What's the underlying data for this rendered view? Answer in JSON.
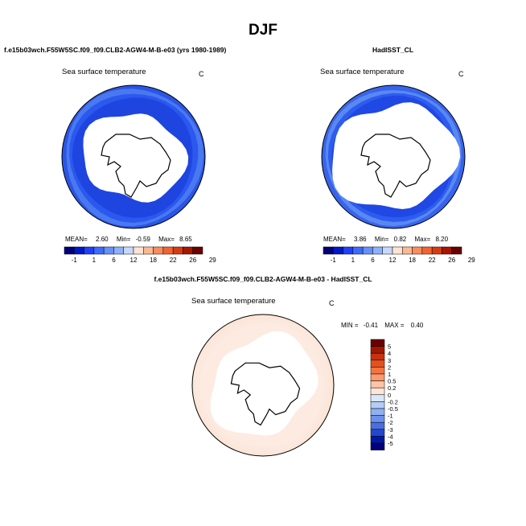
{
  "page": {
    "title": "DJF",
    "panel1_case": "f.e15b03wch.F55W5SC.f09_f09.CLB2-AGW4-M-B-e03 (yrs 1980-1989)",
    "panel2_case": "HadISST_CL",
    "panel3_case": "f.e15b03wch.F55W5SC.f09_f09.CLB2-AGW4-M-B-e03 - HadISST_CL"
  },
  "chart_data": [
    {
      "type": "heatmap",
      "projection": "south-polar-stereographic",
      "title": "Sea surface temperature",
      "units": "C",
      "stats": {
        "mean_label": "MEAN=",
        "mean": "2.60",
        "min_label": "Min=",
        "min": "-0.59",
        "max_label": "Max=",
        "max": "8.65"
      },
      "colorbar": {
        "orientation": "horizontal",
        "tick_labels": [
          "-1",
          "1",
          "6",
          "12",
          "18",
          "22",
          "26",
          "29"
        ],
        "colors": [
          "#00007a",
          "#0018c8",
          "#1f40ff",
          "#3d6bff",
          "#6690ff",
          "#8fb0ff",
          "#c6d8ff",
          "#ffe3d1",
          "#ffb894",
          "#ff8a5e",
          "#f4632e",
          "#d83a12",
          "#a81600",
          "#6b0000"
        ]
      }
    },
    {
      "type": "heatmap",
      "projection": "south-polar-stereographic",
      "title": "Sea surface temperature",
      "units": "C",
      "stats": {
        "mean_label": "MEAN=",
        "mean": "3.86",
        "min_label": "Min=",
        "min": "0.82",
        "max_label": "Max=",
        "max": "8.20"
      },
      "colorbar": {
        "orientation": "horizontal",
        "tick_labels": [
          "-1",
          "1",
          "6",
          "12",
          "18",
          "22",
          "26",
          "29"
        ],
        "colors": [
          "#00007a",
          "#0018c8",
          "#1f40ff",
          "#3d6bff",
          "#6690ff",
          "#8fb0ff",
          "#c6d8ff",
          "#ffe3d1",
          "#ffb894",
          "#ff8a5e",
          "#f4632e",
          "#d83a12",
          "#a81600",
          "#6b0000"
        ]
      }
    },
    {
      "type": "heatmap",
      "projection": "south-polar-stereographic",
      "title": "Sea surface temperature",
      "units": "C",
      "stats": {
        "min_label": "MIN =",
        "min": "-0.41",
        "max_label": "MAX =",
        "max": "0.40"
      },
      "colorbar": {
        "orientation": "vertical",
        "tick_labels": [
          "5",
          "4",
          "3",
          "2",
          "1",
          "0.5",
          "0.2",
          "0",
          "-0.2",
          "-0.5",
          "-1",
          "-2",
          "-3",
          "-4",
          "-5"
        ],
        "colors": [
          "#6b0000",
          "#a01800",
          "#c83210",
          "#e5501f",
          "#f47440",
          "#ff9a6e",
          "#ffc4a5",
          "#fde6d8",
          "#d8e8fb",
          "#b3cdf7",
          "#8fb0f2",
          "#6d90ea",
          "#4a6fe0",
          "#2447cc",
          "#0018a8",
          "#00007a"
        ]
      }
    }
  ]
}
